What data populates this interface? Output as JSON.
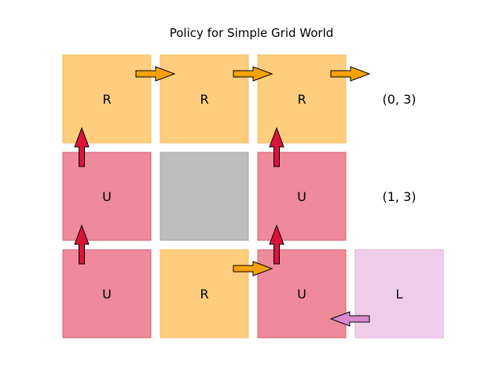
{
  "title": "Policy for Simple Grid World",
  "colors": {
    "R": "#fecd7d",
    "U": "#ee8a9a",
    "L": "#efcdea",
    "wall": "#bdbdbd",
    "arrow_R": "#f5a20a",
    "arrow_U": "#dc143c",
    "arrow_L": "#d98ad0"
  },
  "cells": [
    {
      "row": 0,
      "col": 0,
      "action": "R"
    },
    {
      "row": 0,
      "col": 1,
      "action": "R"
    },
    {
      "row": 0,
      "col": 2,
      "action": "R"
    },
    {
      "row": 1,
      "col": 0,
      "action": "U"
    },
    {
      "row": 1,
      "col": 1,
      "action": "wall"
    },
    {
      "row": 1,
      "col": 2,
      "action": "U"
    },
    {
      "row": 2,
      "col": 0,
      "action": "U"
    },
    {
      "row": 2,
      "col": 1,
      "action": "R"
    },
    {
      "row": 2,
      "col": 2,
      "action": "U"
    },
    {
      "row": 2,
      "col": 3,
      "action": "L"
    }
  ],
  "terminals": [
    {
      "row": 0,
      "col": 3,
      "label": "(0, 3)"
    },
    {
      "row": 1,
      "col": 3,
      "label": "(1, 3)"
    }
  ]
}
